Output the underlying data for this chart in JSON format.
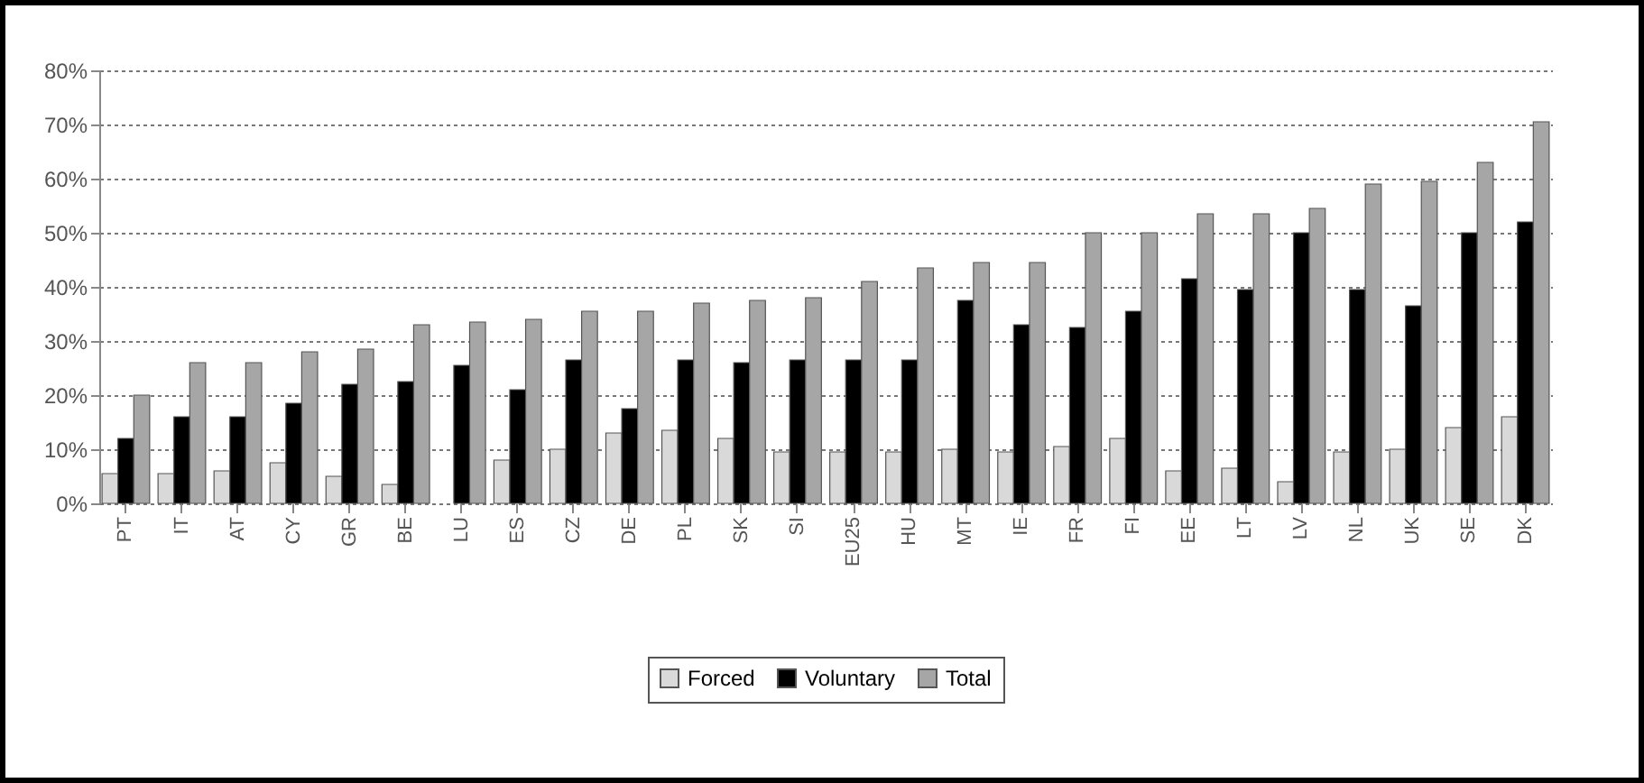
{
  "chart_data": {
    "type": "bar",
    "categories": [
      "PT",
      "IT",
      "AT",
      "CY",
      "GR",
      "BE",
      "LU",
      "ES",
      "CZ",
      "DE",
      "PL",
      "SK",
      "SI",
      "EU25",
      "HU",
      "MT",
      "IE",
      "FR",
      "FI",
      "EE",
      "LT",
      "LV",
      "NL",
      "UK",
      "SE",
      "DK"
    ],
    "series": [
      {
        "name": "Forced",
        "color": "#d9d9d9",
        "values": [
          5.5,
          5.5,
          6,
          7.5,
          5,
          3.5,
          null,
          8,
          10,
          13,
          13.5,
          12,
          9.5,
          9.5,
          9.5,
          10,
          9.5,
          10.5,
          12,
          6,
          6.5,
          4,
          9.5,
          10,
          14,
          16
        ]
      },
      {
        "name": "Voluntary",
        "color": "#000000",
        "values": [
          12,
          16,
          16,
          18.5,
          22,
          22.5,
          25.5,
          21,
          26.5,
          17.5,
          26.5,
          26,
          26.5,
          26.5,
          26.5,
          37.5,
          33,
          32.5,
          35.5,
          41.5,
          39.5,
          50,
          39.5,
          36.5,
          50,
          52
        ]
      },
      {
        "name": "Total",
        "color": "#a6a6a6",
        "values": [
          20,
          26,
          26,
          28,
          28.5,
          33,
          33.5,
          34,
          35.5,
          35.5,
          37,
          37.5,
          38,
          41,
          43.5,
          44.5,
          44.5,
          50,
          50,
          53.5,
          53.5,
          54.5,
          59,
          59.5,
          63,
          70.5
        ]
      }
    ],
    "ylim": [
      0,
      80
    ],
    "yticks": [
      {
        "value": 0,
        "label": "0%"
      },
      {
        "value": 10,
        "label": "10%"
      },
      {
        "value": 20,
        "label": "20%"
      },
      {
        "value": 30,
        "label": "30%"
      },
      {
        "value": 40,
        "label": "40%"
      },
      {
        "value": 50,
        "label": "50%"
      },
      {
        "value": 60,
        "label": "60%"
      },
      {
        "value": 70,
        "label": "70%"
      },
      {
        "value": 80,
        "label": "80%"
      }
    ],
    "grid": "y",
    "legend": "bottom"
  }
}
